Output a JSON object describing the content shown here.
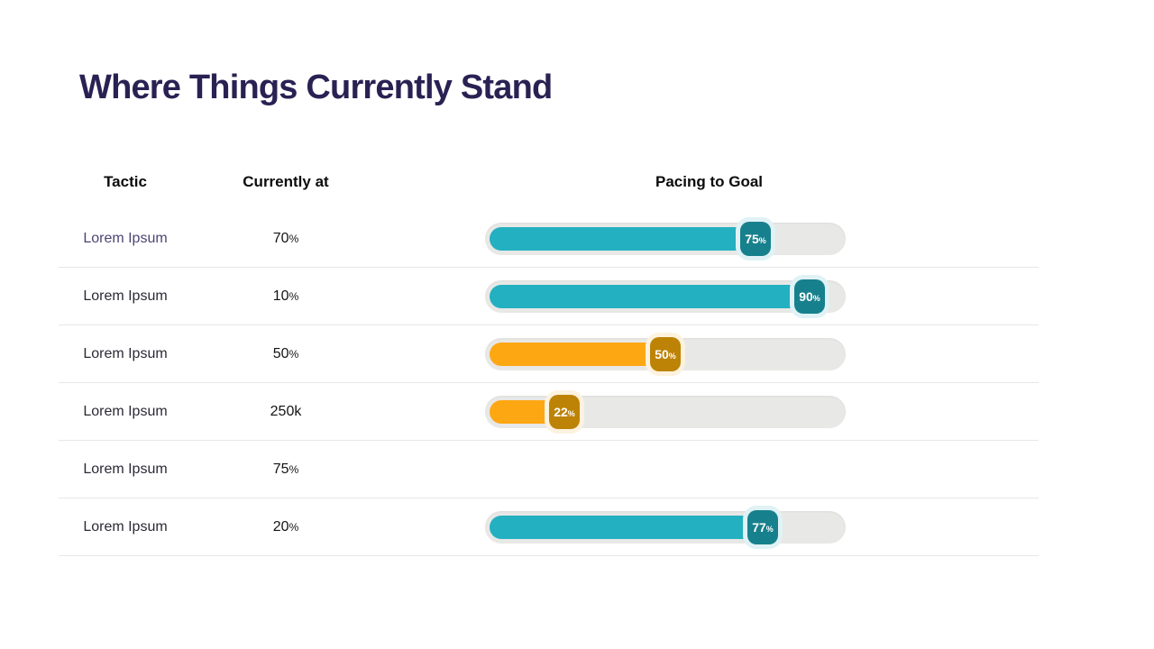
{
  "title": "Where Things Currently Stand",
  "table": {
    "headers": [
      "Tactic",
      "Currently at",
      "Pacing to Goal"
    ],
    "percent_sign": "%",
    "rows": [
      {
        "tactic": "Lorem Ipsum",
        "currently_at": "70%",
        "highlight": true,
        "pacing": {
          "has_bar": true,
          "percent": 75,
          "theme": "teal"
        }
      },
      {
        "tactic": "Lorem Ipsum",
        "currently_at": "10%",
        "highlight": false,
        "pacing": {
          "has_bar": true,
          "percent": 90,
          "theme": "teal"
        }
      },
      {
        "tactic": "Lorem Ipsum",
        "currently_at": "50%",
        "highlight": false,
        "pacing": {
          "has_bar": true,
          "percent": 50,
          "theme": "orange"
        }
      },
      {
        "tactic": "Lorem Ipsum",
        "currently_at": "250k",
        "highlight": false,
        "pacing": {
          "has_bar": true,
          "percent": 22,
          "theme": "orange"
        }
      },
      {
        "tactic": "Lorem Ipsum",
        "currently_at": "75%",
        "highlight": false,
        "pacing": {
          "has_bar": false
        }
      },
      {
        "tactic": "Lorem Ipsum",
        "currently_at": "20%",
        "highlight": false,
        "pacing": {
          "has_bar": true,
          "percent": 77,
          "theme": "teal"
        }
      }
    ]
  },
  "chart_data": {
    "type": "table",
    "title": "Where Things Currently Stand",
    "columns": [
      "Tactic",
      "Currently at",
      "Pacing to Goal"
    ],
    "rows": [
      {
        "tactic": "Lorem Ipsum",
        "currently_at": "70%",
        "pacing_to_goal_percent": 75,
        "bar_color": "teal"
      },
      {
        "tactic": "Lorem Ipsum",
        "currently_at": "10%",
        "pacing_to_goal_percent": 90,
        "bar_color": "teal"
      },
      {
        "tactic": "Lorem Ipsum",
        "currently_at": "50%",
        "pacing_to_goal_percent": 50,
        "bar_color": "orange"
      },
      {
        "tactic": "Lorem Ipsum",
        "currently_at": "250k",
        "pacing_to_goal_percent": 22,
        "bar_color": "orange"
      },
      {
        "tactic": "Lorem Ipsum",
        "currently_at": "75%",
        "pacing_to_goal_percent": null,
        "bar_color": null
      },
      {
        "tactic": "Lorem Ipsum",
        "currently_at": "20%",
        "pacing_to_goal_percent": 77,
        "bar_color": "teal"
      }
    ],
    "bar_range": [
      0,
      100
    ]
  },
  "colors": {
    "bg": "#ffffff",
    "title": "#2a2153",
    "header": "#0b0b0b",
    "tactic": "#2b2a35",
    "tactic_highlight": "#4d4473",
    "value": "#141414",
    "divider": "#e7e7e7",
    "track": "#e8e8e7",
    "teal_fill": "#23b0c0",
    "teal_badge": "#17808d",
    "teal_halo": "#e0f2f5",
    "orange_fill": "#fda713",
    "orange_badge": "#bd8306",
    "orange_halo": "#fcf2df"
  }
}
